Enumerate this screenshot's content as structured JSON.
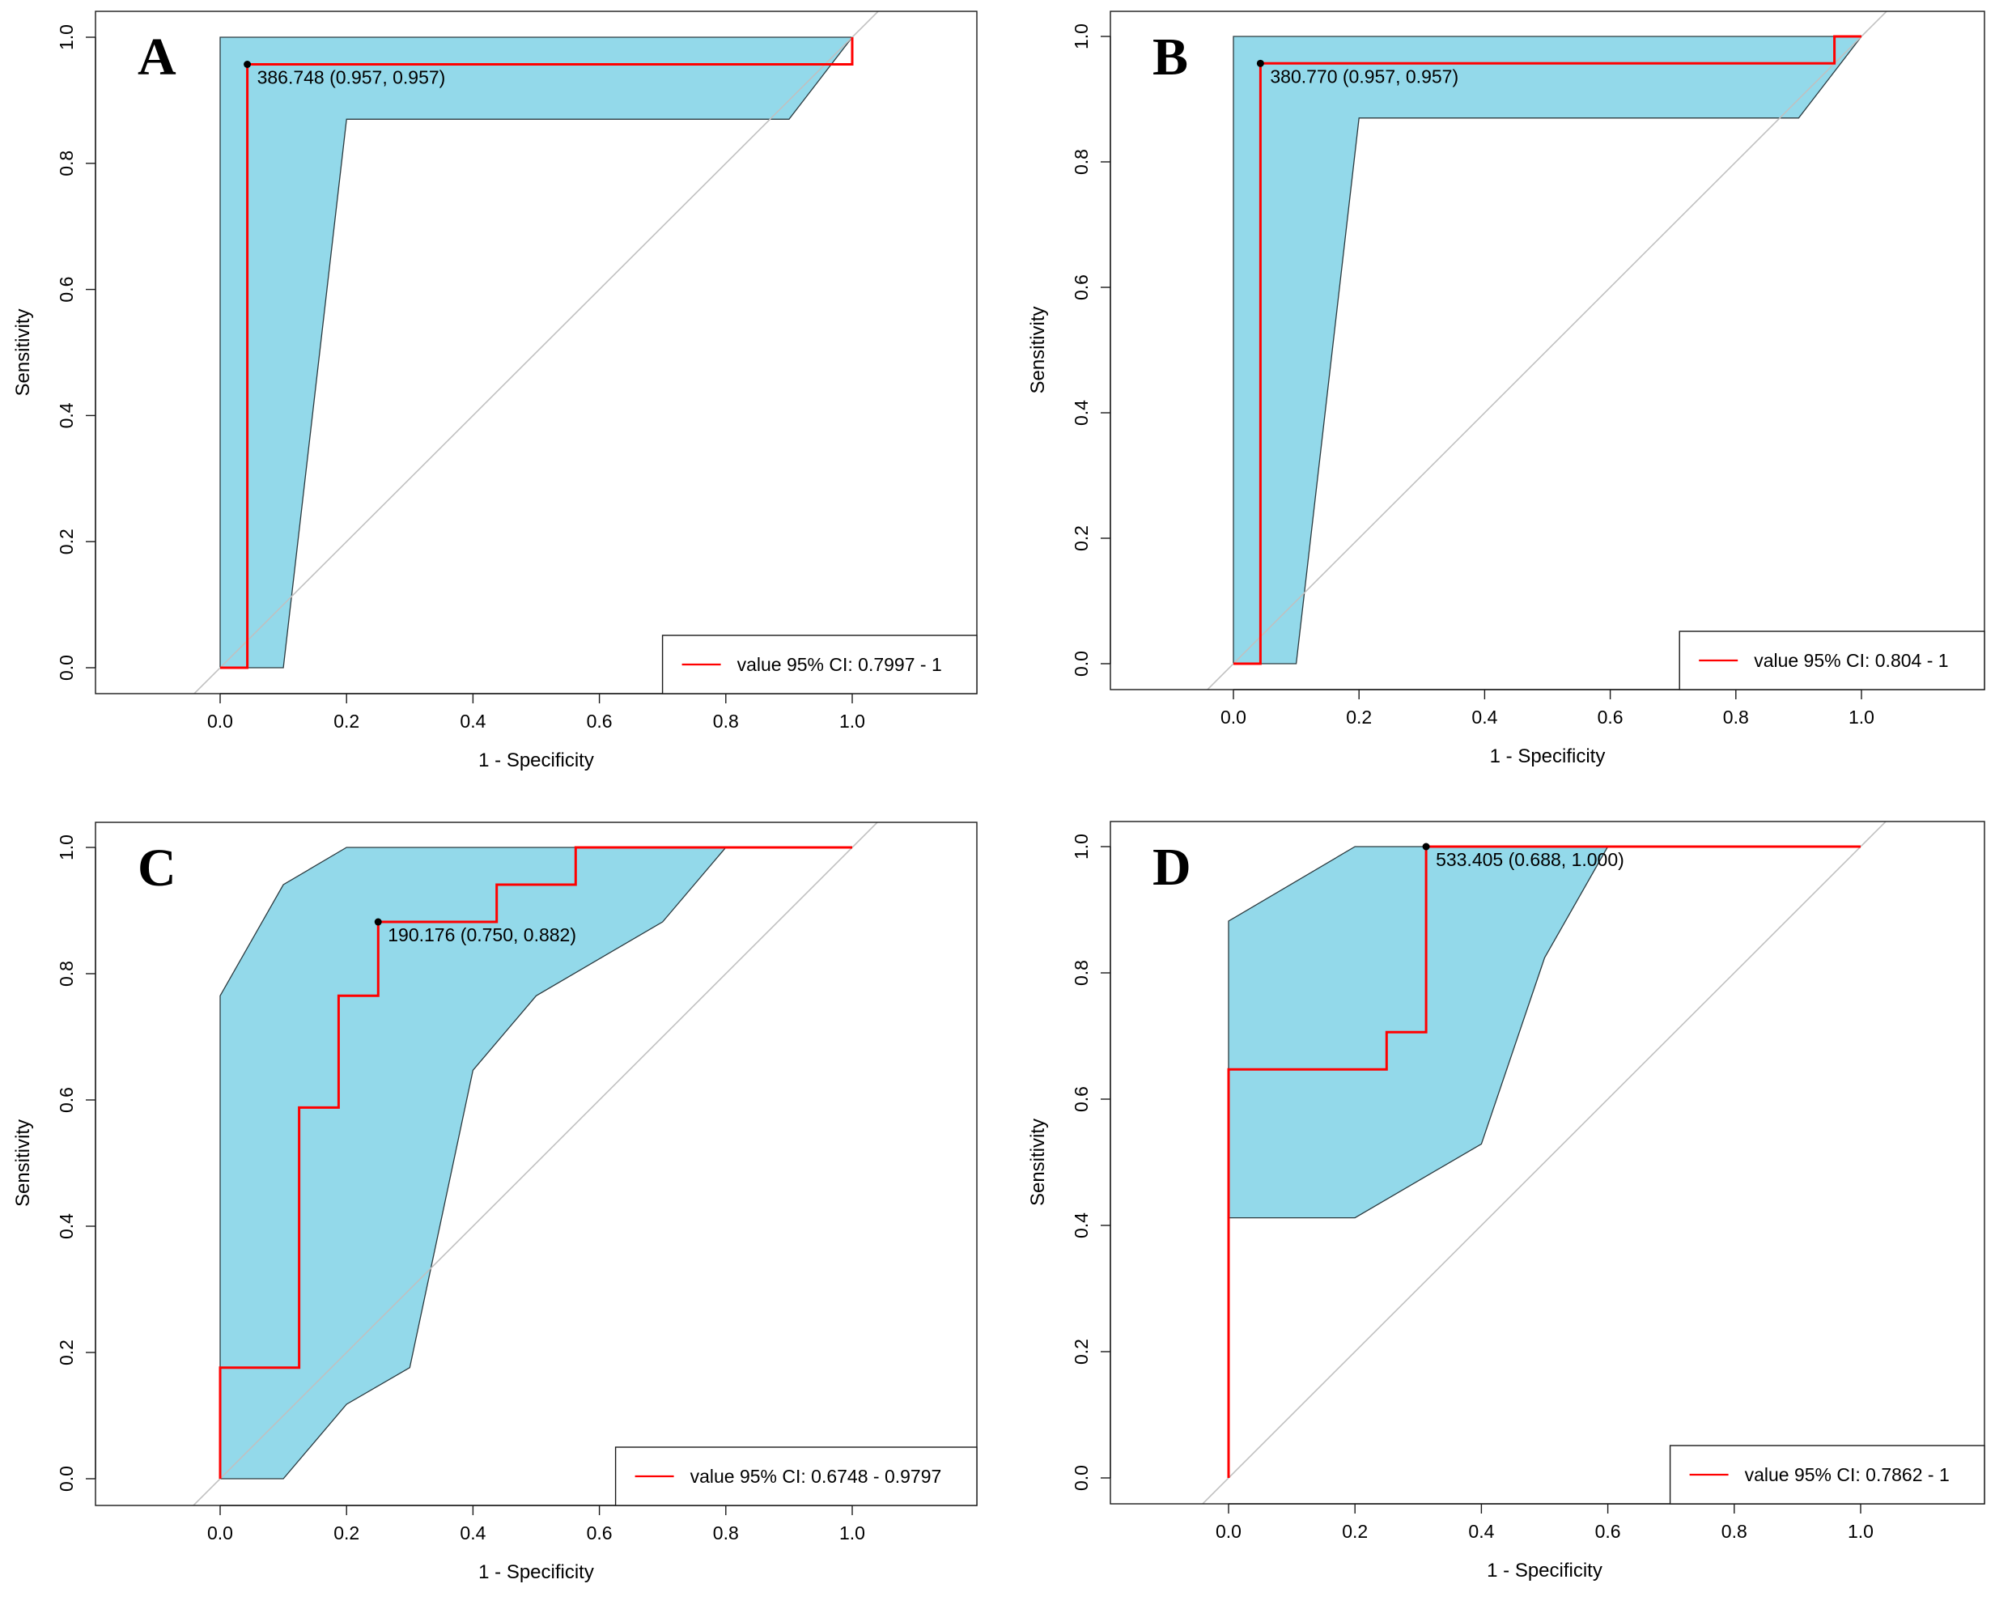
{
  "chart_data": [
    {
      "type": "line",
      "panel_label": "A",
      "xlabel": "1 - Specificity",
      "ylabel": "Sensitivity",
      "xlim": [
        -0.2,
        1.2
      ],
      "ylim": [
        -0.04,
        1.04
      ],
      "x_ticks": [
        "0.0",
        "0.2",
        "0.4",
        "0.6",
        "0.8",
        "1.0"
      ],
      "y_ticks": [
        "0.0",
        "0.2",
        "0.4",
        "0.6",
        "0.8",
        "1.0"
      ],
      "series": [
        {
          "name": "value",
          "points": [
            [
              0,
              0
            ],
            [
              0.043,
              0
            ],
            [
              0.043,
              0.957
            ],
            [
              1.0,
              0.957
            ],
            [
              1.0,
              1.0
            ]
          ]
        }
      ],
      "ci_band": [
        [
          0,
          0
        ],
        [
          0,
          1
        ],
        [
          1,
          1
        ],
        [
          0.9,
          0.87
        ],
        [
          0.2,
          0.87
        ],
        [
          0.1,
          0
        ]
      ],
      "threshold": {
        "label": "386.748 (0.957, 0.957)",
        "x": 0.043,
        "y": 0.957
      },
      "legend": {
        "text": "value 95% CI: 0.7997 - 1",
        "position": "bottom-right"
      },
      "colors": {
        "curve": "#ff0000",
        "band": "#93d9ea",
        "diagonal": "#c0c0c0"
      }
    },
    {
      "type": "line",
      "panel_label": "B",
      "xlabel": "1 - Specificity",
      "ylabel": "Sensitivity",
      "xlim": [
        -0.2,
        1.2
      ],
      "ylim": [
        -0.04,
        1.04
      ],
      "x_ticks": [
        "0.0",
        "0.2",
        "0.4",
        "0.6",
        "0.8",
        "1.0"
      ],
      "y_ticks": [
        "0.0",
        "0.2",
        "0.4",
        "0.6",
        "0.8",
        "1.0"
      ],
      "series": [
        {
          "name": "value",
          "points": [
            [
              0,
              0
            ],
            [
              0.043,
              0
            ],
            [
              0.043,
              0.957
            ],
            [
              0.957,
              0.957
            ],
            [
              0.957,
              1.0
            ],
            [
              1.0,
              1.0
            ]
          ]
        }
      ],
      "ci_band": [
        [
          0,
          0
        ],
        [
          0,
          1
        ],
        [
          1,
          1
        ],
        [
          0.9,
          0.87
        ],
        [
          0.2,
          0.87
        ],
        [
          0.1,
          0
        ]
      ],
      "threshold": {
        "label": "380.770 (0.957, 0.957)",
        "x": 0.043,
        "y": 0.957
      },
      "legend": {
        "text": "value 95% CI: 0.804 - 1",
        "position": "bottom-right"
      },
      "colors": {
        "curve": "#ff0000",
        "band": "#93d9ea",
        "diagonal": "#c0c0c0"
      }
    },
    {
      "type": "line",
      "panel_label": "C",
      "xlabel": "1 - Specificity",
      "ylabel": "Sensitivity",
      "xlim": [
        -0.2,
        1.2
      ],
      "ylim": [
        -0.04,
        1.04
      ],
      "x_ticks": [
        "0.0",
        "0.2",
        "0.4",
        "0.6",
        "0.8",
        "1.0"
      ],
      "y_ticks": [
        "0.0",
        "0.2",
        "0.4",
        "0.6",
        "0.8",
        "1.0"
      ],
      "series": [
        {
          "name": "value",
          "points": [
            [
              0,
              0
            ],
            [
              0,
              0.176
            ],
            [
              0.125,
              0.176
            ],
            [
              0.125,
              0.588
            ],
            [
              0.1875,
              0.588
            ],
            [
              0.1875,
              0.765
            ],
            [
              0.25,
              0.765
            ],
            [
              0.25,
              0.882
            ],
            [
              0.4375,
              0.882
            ],
            [
              0.4375,
              0.941
            ],
            [
              0.5625,
              0.941
            ],
            [
              0.5625,
              1.0
            ],
            [
              1.0,
              1.0
            ]
          ]
        }
      ],
      "ci_band": [
        [
          0,
          0
        ],
        [
          0,
          0.765
        ],
        [
          0.1,
          0.941
        ],
        [
          0.2,
          1
        ],
        [
          0.8,
          1
        ],
        [
          0.7,
          0.882
        ],
        [
          0.5,
          0.765
        ],
        [
          0.4,
          0.647
        ],
        [
          0.3,
          0.176
        ],
        [
          0.2,
          0.118
        ],
        [
          0.1,
          0
        ]
      ],
      "threshold": {
        "label": "190.176 (0.750, 0.882)",
        "x": 0.25,
        "y": 0.882
      },
      "legend": {
        "text": "value 95% CI: 0.6748 - 0.9797",
        "position": "bottom-right"
      },
      "colors": {
        "curve": "#ff0000",
        "band": "#93d9ea",
        "diagonal": "#c0c0c0"
      }
    },
    {
      "type": "line",
      "panel_label": "D",
      "xlabel": "1 - Specificity",
      "ylabel": "Sensitivity",
      "xlim": [
        -0.2,
        1.2
      ],
      "ylim": [
        -0.04,
        1.04
      ],
      "x_ticks": [
        "0.0",
        "0.2",
        "0.4",
        "0.6",
        "0.8",
        "1.0"
      ],
      "y_ticks": [
        "0.0",
        "0.2",
        "0.4",
        "0.6",
        "0.8",
        "1.0"
      ],
      "series": [
        {
          "name": "value",
          "points": [
            [
              0,
              0
            ],
            [
              0,
              0.647
            ],
            [
              0.25,
              0.647
            ],
            [
              0.25,
              0.706
            ],
            [
              0.3125,
              0.706
            ],
            [
              0.3125,
              1.0
            ],
            [
              1.0,
              1.0
            ]
          ]
        }
      ],
      "ci_band": [
        [
          0,
          0.412
        ],
        [
          0,
          0.882
        ],
        [
          0.2,
          1
        ],
        [
          0.6,
          1
        ],
        [
          0.5,
          0.824
        ],
        [
          0.4,
          0.529
        ],
        [
          0.2,
          0.412
        ]
      ],
      "threshold": {
        "label": "533.405 (0.688, 1.000)",
        "x": 0.3125,
        "y": 1.0
      },
      "legend": {
        "text": "value 95% CI: 0.7862 - 1",
        "position": "bottom-right"
      },
      "colors": {
        "curve": "#ff0000",
        "band": "#93d9ea",
        "diagonal": "#c0c0c0"
      }
    }
  ]
}
